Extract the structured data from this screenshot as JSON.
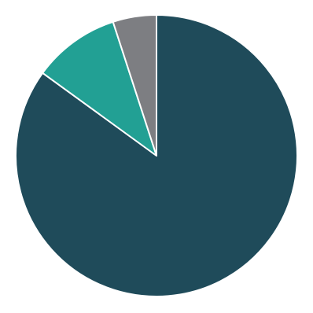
{
  "chart_data": {
    "type": "pie",
    "values": [
      85,
      10,
      5
    ],
    "colors": [
      "#1f4b5a",
      "#22a094",
      "#7d7e82"
    ]
  }
}
